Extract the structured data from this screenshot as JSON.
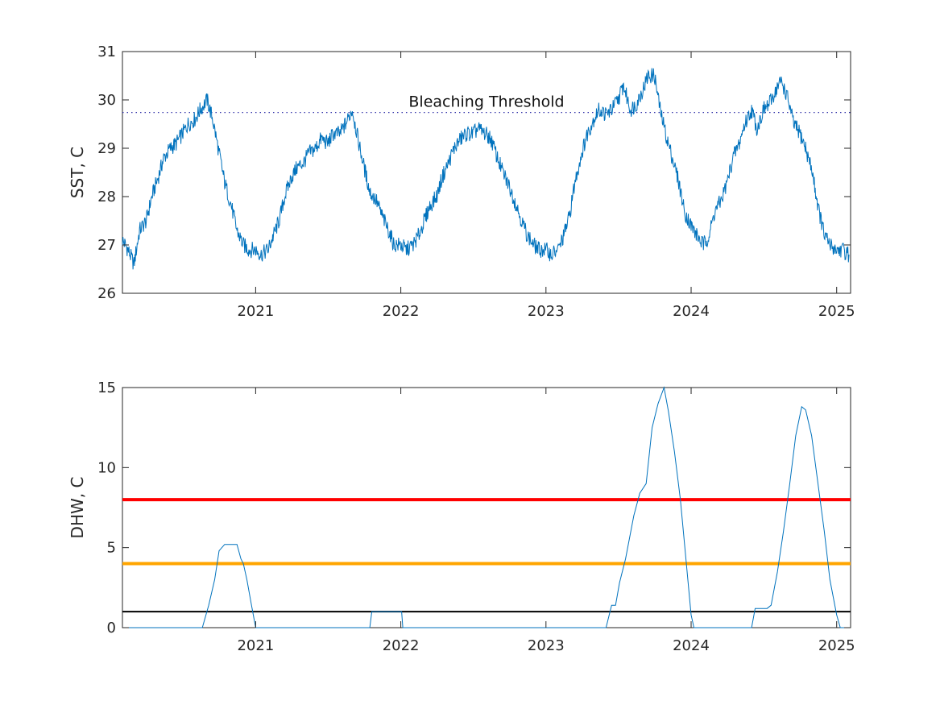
{
  "chart_data": [
    {
      "type": "line",
      "ylabel": "SST, C",
      "xlim": [
        "2020-02-01",
        "2025-02-05"
      ],
      "ylim": [
        26,
        31
      ],
      "xticks": [
        "2021",
        "2022",
        "2023",
        "2024",
        "2025"
      ],
      "yticks": [
        "26",
        "27",
        "28",
        "29",
        "30",
        "31"
      ],
      "grid": false,
      "series": [
        {
          "color": "#0072bd",
          "x": [
            "2020-02-01",
            "2020-02-15",
            "2020-03-01",
            "2020-03-15",
            "2020-04-01",
            "2020-04-15",
            "2020-05-01",
            "2020-05-15",
            "2020-06-01",
            "2020-06-15",
            "2020-07-01",
            "2020-07-15",
            "2020-08-01",
            "2020-08-15",
            "2020-09-01",
            "2020-09-15",
            "2020-10-01",
            "2020-10-15",
            "2020-11-01",
            "2020-11-15",
            "2020-12-01",
            "2020-12-15",
            "2021-01-01",
            "2021-01-15",
            "2021-02-01",
            "2021-02-15",
            "2021-03-01",
            "2021-03-15",
            "2021-04-01",
            "2021-04-15",
            "2021-05-01",
            "2021-05-15",
            "2021-06-01",
            "2021-06-15",
            "2021-07-01",
            "2021-07-15",
            "2021-08-01",
            "2021-08-15",
            "2021-09-01",
            "2021-09-15",
            "2021-10-01",
            "2021-10-15",
            "2021-11-01",
            "2021-11-15",
            "2021-12-01",
            "2021-12-15",
            "2022-01-01",
            "2022-01-15",
            "2022-02-01",
            "2022-02-15",
            "2022-03-01",
            "2022-03-15",
            "2022-04-01",
            "2022-04-15",
            "2022-05-01",
            "2022-05-15",
            "2022-06-01",
            "2022-06-15",
            "2022-07-01",
            "2022-07-15",
            "2022-08-01",
            "2022-08-15",
            "2022-09-01",
            "2022-09-15",
            "2022-10-01",
            "2022-10-15",
            "2022-11-01",
            "2022-11-15",
            "2022-12-01",
            "2022-12-15",
            "2023-01-01",
            "2023-01-15",
            "2023-02-01",
            "2023-02-15",
            "2023-03-01",
            "2023-03-15",
            "2023-04-01",
            "2023-04-15",
            "2023-05-01",
            "2023-05-15",
            "2023-06-01",
            "2023-06-15",
            "2023-07-01",
            "2023-07-15",
            "2023-08-01",
            "2023-08-15",
            "2023-09-01",
            "2023-09-15",
            "2023-10-01",
            "2023-10-15",
            "2023-11-01",
            "2023-11-15",
            "2023-12-01",
            "2023-12-15",
            "2024-01-01",
            "2024-01-15",
            "2024-02-01",
            "2024-02-15",
            "2024-03-01",
            "2024-03-15",
            "2024-04-01",
            "2024-04-15",
            "2024-05-01",
            "2024-05-15",
            "2024-06-01",
            "2024-06-15",
            "2024-07-01",
            "2024-07-15",
            "2024-08-01",
            "2024-08-15",
            "2024-09-01",
            "2024-09-15",
            "2024-10-01",
            "2024-10-15",
            "2024-11-01",
            "2024-11-15",
            "2024-12-01",
            "2024-12-15",
            "2025-01-01",
            "2025-01-15",
            "2025-02-01"
          ],
          "y": [
            27.1,
            26.9,
            26.6,
            27.3,
            27.5,
            28.0,
            28.4,
            28.8,
            29.0,
            29.1,
            29.3,
            29.5,
            29.6,
            29.8,
            30.0,
            29.6,
            28.9,
            28.3,
            27.8,
            27.3,
            27.0,
            26.9,
            26.9,
            26.8,
            26.9,
            27.2,
            27.5,
            28.0,
            28.4,
            28.6,
            28.7,
            28.9,
            29.0,
            29.2,
            29.1,
            29.3,
            29.3,
            29.5,
            29.8,
            29.2,
            28.6,
            28.1,
            27.9,
            27.6,
            27.3,
            27.0,
            27.0,
            26.9,
            27.0,
            27.2,
            27.5,
            27.8,
            28.0,
            28.4,
            28.7,
            29.0,
            29.2,
            29.3,
            29.3,
            29.4,
            29.3,
            29.2,
            28.8,
            28.5,
            28.2,
            27.9,
            27.5,
            27.2,
            27.0,
            26.9,
            26.9,
            26.8,
            26.9,
            27.2,
            27.6,
            28.3,
            28.9,
            29.3,
            29.6,
            29.8,
            29.7,
            29.8,
            30.0,
            30.3,
            29.8,
            29.9,
            30.2,
            30.5,
            30.5,
            29.8,
            29.2,
            28.8,
            28.3,
            27.7,
            27.4,
            27.2,
            27.0,
            27.2,
            27.7,
            27.9,
            28.3,
            28.8,
            29.1,
            29.5,
            29.8,
            29.4,
            29.8,
            29.9,
            30.2,
            30.4,
            30.0,
            29.5,
            29.3,
            29.0,
            28.5,
            27.8,
            27.2,
            27.0,
            26.9,
            26.9,
            26.8
          ]
        }
      ],
      "threshold": {
        "y": 29.74,
        "label": "Bleaching Threshold",
        "color": "#3333aa"
      }
    },
    {
      "type": "line",
      "ylabel": "DHW, C",
      "xlim": [
        "2020-02-01",
        "2025-02-05"
      ],
      "ylim": [
        0,
        15
      ],
      "xticks": [
        "2021",
        "2022",
        "2023",
        "2024",
        "2025"
      ],
      "yticks": [
        "0",
        "5",
        "10",
        "15"
      ],
      "grid": false,
      "series": [
        {
          "color": "#0072bd",
          "x": [
            "2020-02-01",
            "2020-08-20",
            "2020-09-05",
            "2020-09-20",
            "2020-10-01",
            "2020-10-15",
            "2020-11-01",
            "2020-11-15",
            "2020-11-25",
            "2020-12-01",
            "2020-12-10",
            "2020-12-20",
            "2021-01-01",
            "2021-06-01",
            "2021-10-15",
            "2021-10-20",
            "2021-11-15",
            "2021-12-15",
            "2022-01-03",
            "2022-01-06",
            "2022-06-01",
            "2022-12-01",
            "2023-01-01",
            "2023-06-01",
            "2023-06-15",
            "2023-06-25",
            "2023-07-05",
            "2023-07-20",
            "2023-08-10",
            "2023-08-25",
            "2023-09-10",
            "2023-09-25",
            "2023-10-10",
            "2023-10-25",
            "2023-11-05",
            "2023-11-20",
            "2023-12-05",
            "2023-12-20",
            "2024-01-01",
            "2024-01-08",
            "2024-06-01",
            "2024-06-10",
            "2024-06-20",
            "2024-07-10",
            "2024-07-20",
            "2024-08-05",
            "2024-08-20",
            "2024-09-05",
            "2024-09-20",
            "2024-10-05",
            "2024-10-15",
            "2024-10-30",
            "2024-11-15",
            "2024-12-01",
            "2024-12-15",
            "2025-01-01",
            "2025-01-10",
            "2025-02-01"
          ],
          "y": [
            0,
            0,
            1.4,
            3.0,
            4.8,
            5.2,
            5.2,
            5.2,
            4.3,
            4.0,
            3.0,
            1.6,
            0,
            0,
            0,
            1.0,
            1.0,
            1.0,
            1.0,
            0,
            0,
            0,
            0,
            0,
            1.4,
            1.4,
            2.8,
            4.3,
            7.0,
            8.4,
            9.0,
            12.5,
            14.0,
            15.0,
            13.5,
            11.0,
            8.0,
            4.0,
            0.8,
            0,
            0,
            1.2,
            1.2,
            1.2,
            1.4,
            3.5,
            6.0,
            9.0,
            12.0,
            13.8,
            13.6,
            12.0,
            9.0,
            6.0,
            3.0,
            0.8,
            0,
            0
          ]
        }
      ],
      "reference_lines": [
        {
          "y": 8,
          "color": "#ff0000"
        },
        {
          "y": 4,
          "color": "#ffa500"
        },
        {
          "y": 1,
          "color": "#000000"
        }
      ]
    }
  ]
}
